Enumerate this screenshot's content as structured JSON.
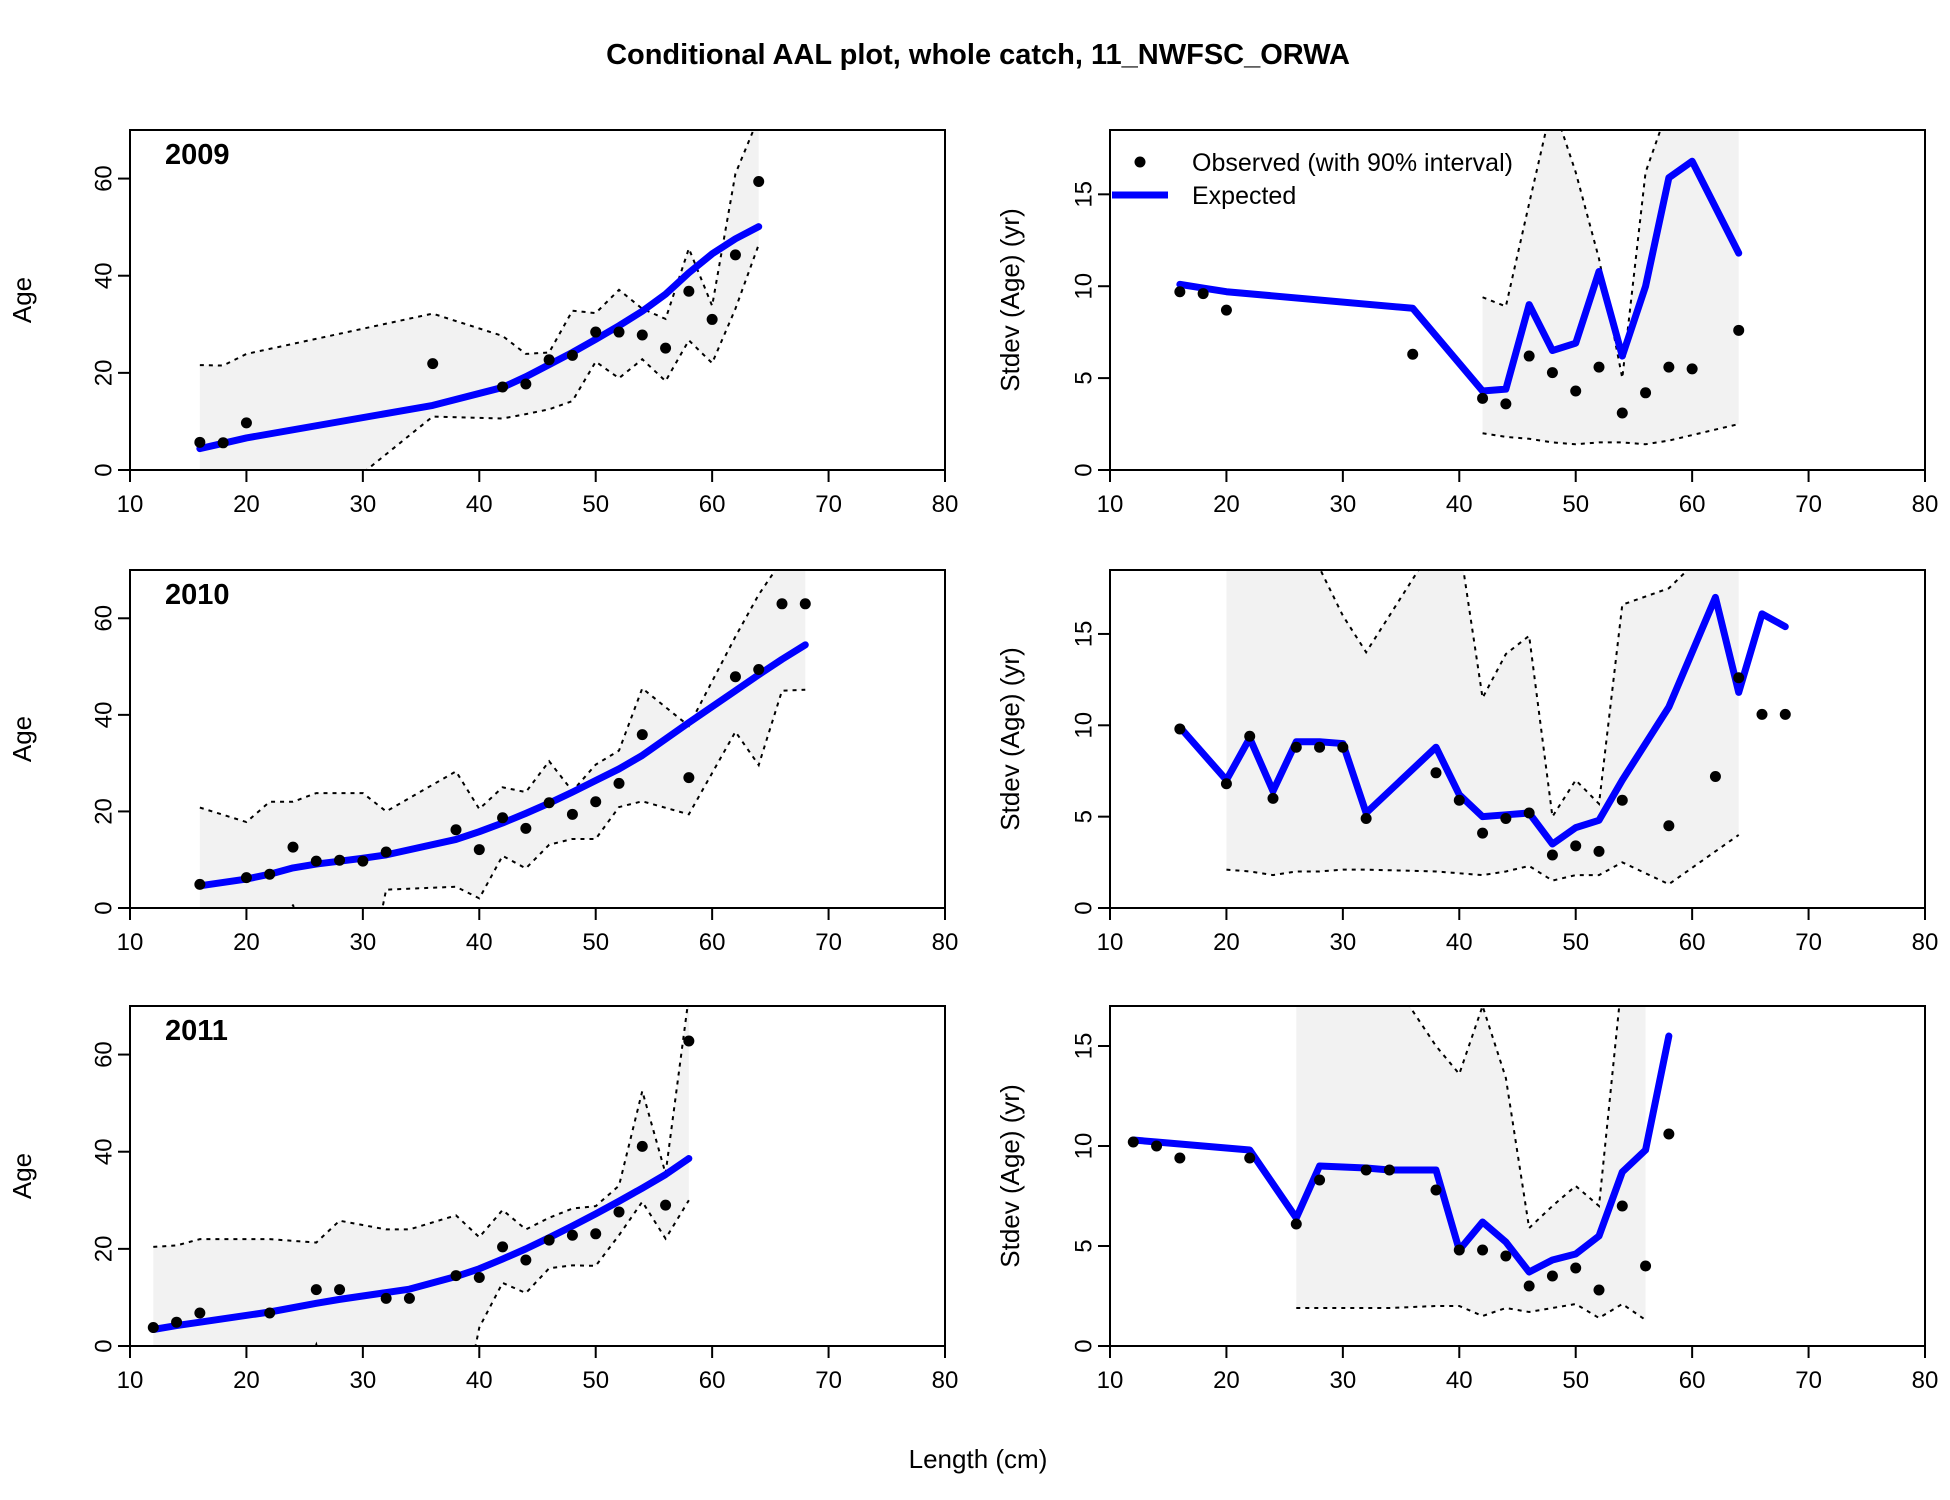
{
  "title": "Conditional AAL plot, whole catch, 11_NWFSC_ORWA",
  "xlabel": "Length (cm)",
  "legend": {
    "observed": "Observed (with 90% interval)",
    "expected": "Expected"
  },
  "colors": {
    "expected": "#0000ff",
    "observed": "#000000",
    "interval_fill": "#f2f2f2",
    "interval_line": "#000000"
  },
  "chart_data": [
    {
      "type": "scatter",
      "panel": "age",
      "year": "2009",
      "ylabel": "Age",
      "xlim": [
        10,
        80
      ],
      "ylim": [
        0,
        70
      ],
      "xticks": [
        10,
        20,
        30,
        40,
        50,
        60,
        70,
        80
      ],
      "yticks": [
        0,
        20,
        40,
        60
      ],
      "x": [
        16,
        18,
        20,
        36,
        42,
        44,
        46,
        48,
        50,
        52,
        54,
        56,
        58,
        60,
        62,
        64
      ],
      "observed": [
        5.7,
        5.6,
        9.7,
        21.9,
        17.1,
        17.7,
        22.7,
        23.6,
        28.4,
        28.4,
        27.8,
        25.1,
        36.8,
        31.0,
        44.3,
        59.4
      ],
      "expected": [
        4.4,
        5.5,
        6.6,
        13.3,
        17.0,
        19.2,
        21.7,
        24.2,
        26.9,
        29.7,
        32.7,
        36.2,
        40.6,
        44.5,
        47.6,
        50.1
      ],
      "lower": [
        -20,
        -20,
        -20,
        11.0,
        10.6,
        11.5,
        12.5,
        14.2,
        22.3,
        18.9,
        22.8,
        18.3,
        26.7,
        22.0,
        33.2,
        46.4
      ],
      "upper": [
        21.6,
        21.5,
        23.9,
        32.2,
        27.6,
        23.9,
        24.2,
        32.8,
        32.3,
        37.1,
        33.2,
        31.1,
        45.6,
        33.8,
        61.0,
        72.6
      ]
    },
    {
      "type": "scatter",
      "panel": "stdev",
      "year": "2009",
      "ylabel": "Stdev (Age) (yr)",
      "xlim": [
        10,
        80
      ],
      "ylim": [
        0,
        18.5
      ],
      "xticks": [
        10,
        20,
        30,
        40,
        50,
        60,
        70,
        80
      ],
      "yticks": [
        0,
        5,
        10,
        15
      ],
      "show_legend": true,
      "x": [
        16,
        18,
        20,
        36,
        42,
        44,
        46,
        48,
        50,
        52,
        54,
        56,
        58,
        60,
        64
      ],
      "observed": [
        9.7,
        9.6,
        8.7,
        6.3,
        3.9,
        3.6,
        6.2,
        5.3,
        4.3,
        5.6,
        3.1,
        4.2,
        5.6,
        5.5,
        7.6
      ],
      "expected": [
        10.1,
        9.9,
        9.7,
        8.8,
        4.3,
        4.4,
        9.0,
        6.5,
        6.9,
        10.8,
        6.2,
        10.0,
        15.9,
        16.8,
        11.8
      ],
      "interval_x": [
        42,
        44,
        46,
        48,
        50,
        52,
        54,
        56,
        58,
        60,
        62,
        64
      ],
      "interval_lower": [
        2.0,
        1.8,
        1.7,
        1.5,
        1.4,
        1.5,
        1.5,
        1.4,
        1.6,
        1.9,
        2.2,
        2.5
      ],
      "interval_upper": [
        9.4,
        8.9,
        14.5,
        20.0,
        16.2,
        11.5,
        5.0,
        16.2,
        19.8,
        20.0,
        20.0,
        20.0
      ]
    },
    {
      "type": "scatter",
      "panel": "age",
      "year": "2010",
      "ylabel": "Age",
      "xlim": [
        10,
        80
      ],
      "ylim": [
        0,
        70
      ],
      "xticks": [
        10,
        20,
        30,
        40,
        50,
        60,
        70,
        80
      ],
      "yticks": [
        0,
        20,
        40,
        60
      ],
      "x": [
        16,
        20,
        22,
        24,
        26,
        28,
        30,
        32,
        38,
        40,
        42,
        44,
        46,
        48,
        50,
        52,
        54,
        58,
        62,
        64,
        66,
        68
      ],
      "observed": [
        4.9,
        6.3,
        7.0,
        12.6,
        9.7,
        9.9,
        9.7,
        11.6,
        16.2,
        12.1,
        18.7,
        16.5,
        21.8,
        19.4,
        22.0,
        25.8,
        35.9,
        27.0,
        47.9,
        49.4,
        63.0,
        63.0
      ],
      "expected": [
        4.6,
        6.0,
        7.0,
        8.3,
        9.1,
        9.7,
        10.3,
        11.0,
        14.2,
        15.8,
        17.6,
        19.6,
        21.7,
        24.0,
        26.4,
        28.8,
        31.6,
        38.4,
        45.0,
        48.3,
        51.5,
        54.5
      ],
      "lower": [
        -20,
        -20,
        -20,
        0.7,
        -20,
        -20,
        -20,
        3.8,
        4.4,
        2.0,
        10.8,
        8.2,
        13.1,
        14.3,
        14.3,
        20.9,
        22.1,
        19.4,
        36.5,
        29.6,
        45.0,
        45.2
      ],
      "upper": [
        20.8,
        17.8,
        22.0,
        22.0,
        23.8,
        23.8,
        23.8,
        20.0,
        28.3,
        20.5,
        25.0,
        24.0,
        30.4,
        24.2,
        29.7,
        32.6,
        45.5,
        37.7,
        56.2,
        64.9,
        72.0,
        72.0
      ]
    },
    {
      "type": "scatter",
      "panel": "stdev",
      "year": "2010",
      "ylabel": "Stdev (Age) (yr)",
      "xlim": [
        10,
        80
      ],
      "ylim": [
        0,
        18.5
      ],
      "xticks": [
        10,
        20,
        30,
        40,
        50,
        60,
        70,
        80
      ],
      "yticks": [
        0,
        5,
        10,
        15
      ],
      "show_legend": false,
      "x": [
        16,
        20,
        22,
        24,
        26,
        28,
        30,
        32,
        38,
        40,
        42,
        44,
        46,
        48,
        50,
        52,
        54,
        58,
        62,
        64,
        66,
        68
      ],
      "observed": [
        9.8,
        6.8,
        9.4,
        6.0,
        8.8,
        8.8,
        8.8,
        4.9,
        7.4,
        5.9,
        4.1,
        4.9,
        5.2,
        2.9,
        3.4,
        3.1,
        5.9,
        4.5,
        7.2,
        12.6,
        10.6,
        10.6
      ],
      "expected": [
        9.9,
        7.0,
        9.3,
        6.4,
        9.1,
        9.1,
        9.0,
        5.2,
        8.8,
        6.2,
        5.0,
        5.1,
        5.2,
        3.5,
        4.4,
        4.8,
        7.0,
        11.0,
        17.0,
        11.8,
        16.1,
        15.4
      ],
      "interval_x": [
        20,
        22,
        24,
        26,
        28,
        30,
        32,
        38,
        40,
        42,
        44,
        46,
        48,
        50,
        52,
        54,
        58,
        62,
        64
      ],
      "interval_lower": [
        2.1,
        2.0,
        1.8,
        2.0,
        2.0,
        2.1,
        2.1,
        2.0,
        1.9,
        1.8,
        2.0,
        2.3,
        1.5,
        1.8,
        1.8,
        2.5,
        1.3,
        3.1,
        4.0
      ],
      "interval_upper": [
        20.0,
        20.0,
        20.0,
        20.0,
        18.6,
        16.0,
        14.0,
        20.0,
        20.0,
        11.5,
        13.9,
        14.9,
        5.0,
        7.0,
        5.7,
        16.6,
        17.5,
        20.0,
        20.0
      ]
    },
    {
      "type": "scatter",
      "panel": "age",
      "year": "2011",
      "ylabel": "Age",
      "xlim": [
        10,
        80
      ],
      "ylim": [
        0,
        70
      ],
      "xticks": [
        10,
        20,
        30,
        40,
        50,
        60,
        70,
        80
      ],
      "yticks": [
        0,
        20,
        40,
        60
      ],
      "x": [
        12,
        14,
        16,
        22,
        26,
        28,
        32,
        34,
        38,
        40,
        42,
        44,
        46,
        48,
        50,
        52,
        54,
        56,
        58
      ],
      "observed": [
        3.8,
        4.9,
        6.8,
        6.8,
        11.6,
        11.6,
        9.8,
        9.8,
        14.5,
        14.1,
        20.4,
        17.7,
        21.8,
        22.8,
        23.1,
        27.6,
        41.1,
        29.0,
        62.8
      ],
      "expected": [
        3.4,
        4.2,
        4.9,
        7.0,
        8.8,
        9.6,
        11.0,
        11.7,
        14.3,
        15.9,
        17.9,
        20.0,
        22.3,
        24.7,
        27.2,
        29.8,
        32.5,
        35.3,
        38.6
      ],
      "lower": [
        -20,
        -20,
        -20,
        -20,
        0.3,
        -20,
        -20,
        -20,
        -20,
        3.8,
        13.0,
        10.9,
        16.0,
        16.6,
        16.5,
        22.8,
        29.7,
        22.1,
        30.0
      ],
      "upper": [
        20.4,
        20.7,
        22.0,
        22.0,
        21.3,
        25.8,
        24.0,
        24.0,
        26.9,
        22.4,
        28.0,
        24.0,
        26.4,
        28.3,
        28.8,
        33.0,
        52.5,
        35.5,
        72.0
      ]
    },
    {
      "type": "scatter",
      "panel": "stdev",
      "year": "2011",
      "ylabel": "Stdev (Age) (yr)",
      "xlim": [
        10,
        80
      ],
      "ylim": [
        0,
        17
      ],
      "xticks": [
        10,
        20,
        30,
        40,
        50,
        60,
        70,
        80
      ],
      "yticks": [
        0,
        5,
        10,
        15
      ],
      "show_legend": false,
      "x": [
        12,
        14,
        16,
        22,
        26,
        28,
        32,
        34,
        38,
        40,
        42,
        44,
        46,
        48,
        50,
        52,
        54,
        56,
        58
      ],
      "observed": [
        10.2,
        10.0,
        9.4,
        9.4,
        6.1,
        8.3,
        8.8,
        8.8,
        7.8,
        4.8,
        4.8,
        4.5,
        3.0,
        3.5,
        3.9,
        2.8,
        7.0,
        4.0,
        10.6
      ],
      "expected": [
        10.3,
        10.2,
        10.1,
        9.8,
        6.4,
        9.0,
        8.9,
        8.8,
        8.8,
        4.8,
        6.2,
        5.2,
        3.7,
        4.3,
        4.6,
        5.5,
        8.7,
        9.8,
        15.5
      ],
      "interval_x": [
        26,
        28,
        32,
        34,
        38,
        40,
        42,
        44,
        46,
        48,
        50,
        52,
        54,
        56
      ],
      "interval_lower": [
        1.9,
        1.9,
        1.9,
        1.9,
        2.0,
        2.0,
        1.5,
        1.9,
        1.7,
        1.9,
        2.1,
        1.4,
        2.1,
        1.3
      ],
      "interval_upper": [
        18.5,
        18.5,
        18.5,
        18.5,
        15.0,
        13.6,
        17.0,
        13.4,
        5.9,
        7.0,
        8.0,
        7.0,
        18.5,
        18.5
      ]
    }
  ]
}
